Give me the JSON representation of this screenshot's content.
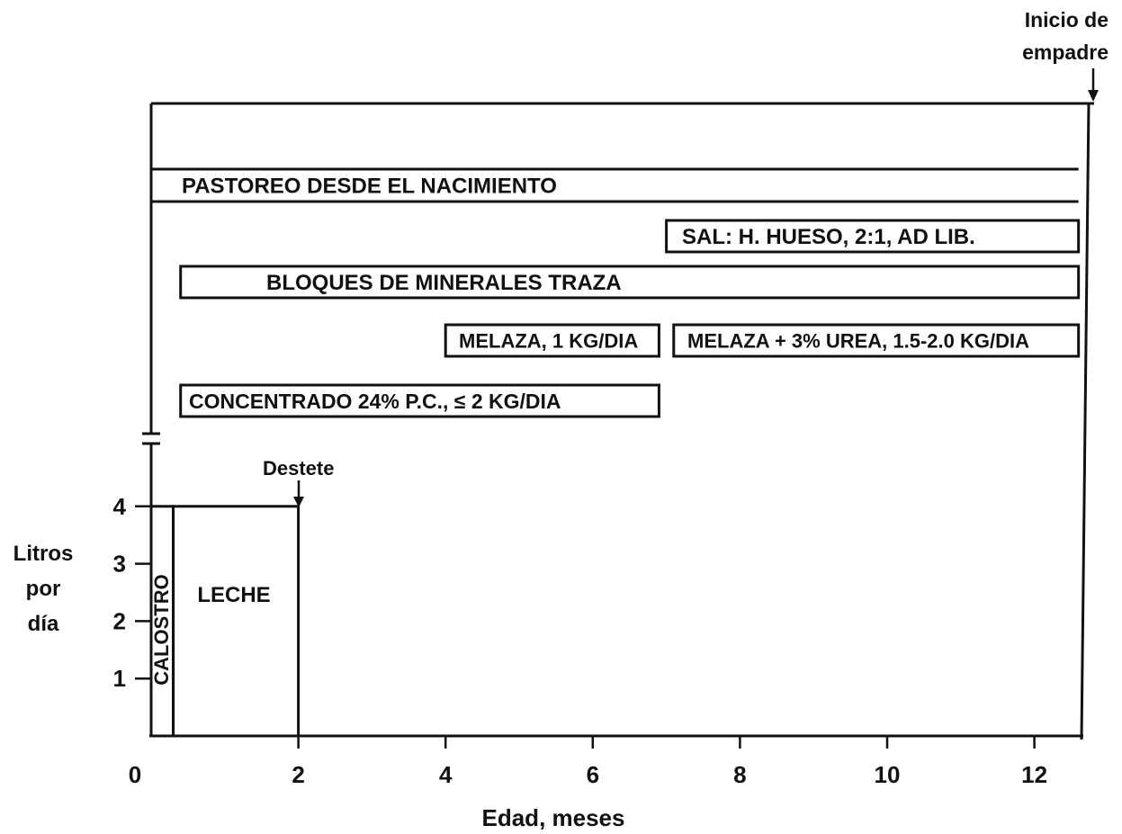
{
  "chart_data": {
    "type": "timeline",
    "title": "",
    "xlabel": "Edad, meses",
    "ylabel": [
      "Litros",
      "por",
      "día"
    ],
    "x_ticks": [
      "0",
      "2",
      "4",
      "6",
      "8",
      "10",
      "12"
    ],
    "x_tick_values": [
      0,
      2,
      4,
      6,
      8,
      10,
      12
    ],
    "y_ticks": [
      "1",
      "2",
      "3",
      "4"
    ],
    "y_tick_values": [
      1,
      2,
      3,
      4
    ],
    "xlim": [
      0,
      12.6
    ],
    "ylim": [
      0,
      4
    ],
    "milk_phase": [
      {
        "label": "CALOSTRO",
        "x_start": 0,
        "x_end": 0.3,
        "litros": 4
      },
      {
        "label": "LECHE",
        "x_start": 0.3,
        "x_end": 2,
        "litros": 4
      }
    ],
    "feeding_bars": [
      {
        "label": "PASTOREO DESDE EL NACIMIENTO",
        "x_start": 0,
        "x_end": 12.6
      },
      {
        "label": "SAL: H. HUESO, 2:1, AD LIB.",
        "x_start": 7,
        "x_end": 12.6
      },
      {
        "label": "BLOQUES DE MINERALES TRAZA",
        "x_start": 0.4,
        "x_end": 12.6
      },
      {
        "label": "MELAZA, 1 KG/DIA",
        "x_start": 4,
        "x_end": 6.9
      },
      {
        "label": "MELAZA + 3% UREA, 1.5-2.0 KG/DIA",
        "x_start": 7.1,
        "x_end": 12.6
      },
      {
        "label": "CONCENTRADO 24% P.C., ≤ 2 KG/DIA",
        "x_start": 0.4,
        "x_end": 6.9
      }
    ],
    "annotations": [
      {
        "label": "Destete",
        "x": 2
      },
      {
        "label": "Inicio de empadre",
        "x": 12.6
      }
    ]
  }
}
